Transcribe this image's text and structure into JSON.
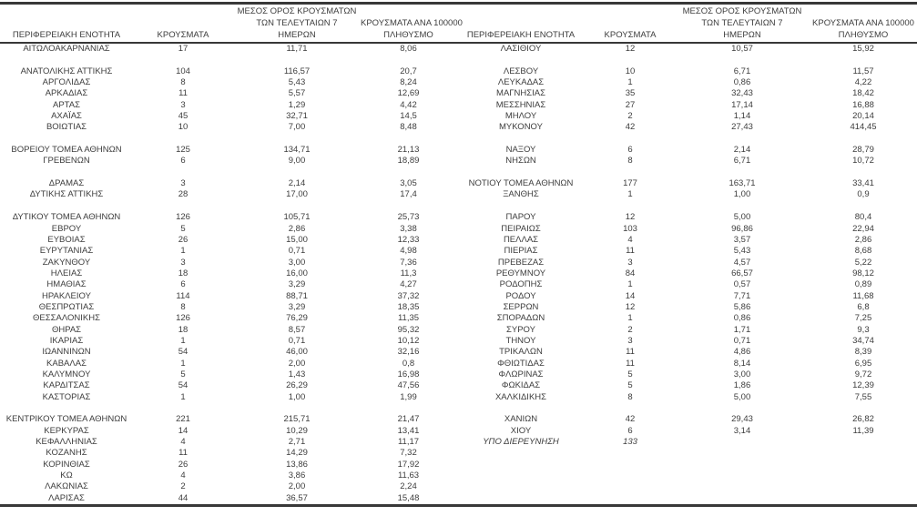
{
  "colors": {
    "text": "#3d3d3d",
    "rule": "#383838",
    "background": "#ffffff"
  },
  "table": {
    "headers": {
      "region": "ΠΕΡΙΦΕΡΕΙΑΚΗ ΕΝΟΤΗΤΑ",
      "cases": "ΚΡΟΥΣΜΑΤΑ",
      "avg7_line1": "ΜΕΣΟΣ ΟΡΟΣ ΚΡΟΥΣΜΑΤΩΝ",
      "avg7_line2": "ΤΩΝ ΤΕΛΕΥΤΑΙΩΝ 7",
      "avg7_line3": "ΗΜΕΡΩΝ",
      "per100k_line1": "ΚΡΟΥΣΜΑΤΑ ΑΝΑ 100000",
      "per100k_line2": "ΠΛΗΘΥΣΜΟ"
    },
    "rows": [
      {
        "left": [
          "ΑΙΤΩΛΟΑΚΑΡΝΑΝΙΑΣ",
          "17",
          "11,71",
          "8,06"
        ],
        "right": [
          "ΛΑΣΙΘΙΟΥ",
          "12",
          "10,57",
          "15,92"
        ]
      },
      {
        "left": [
          "",
          "",
          "",
          ""
        ],
        "right": [
          "",
          "",
          "",
          ""
        ]
      },
      {
        "left": [
          "ΑΝΑΤΟΛΙΚΗΣ ΑΤΤΙΚΗΣ",
          "104",
          "116,57",
          "20,7"
        ],
        "right": [
          "ΛΕΣΒΟΥ",
          "10",
          "6,71",
          "11,57"
        ]
      },
      {
        "left": [
          "ΑΡΓΟΛΙΔΑΣ",
          "8",
          "5,43",
          "8,24"
        ],
        "right": [
          "ΛΕΥΚΑΔΑΣ",
          "1",
          "0,86",
          "4,22"
        ]
      },
      {
        "left": [
          "ΑΡΚΑΔΙΑΣ",
          "11",
          "5,57",
          "12,69"
        ],
        "right": [
          "ΜΑΓΝΗΣΙΑΣ",
          "35",
          "32,43",
          "18,42"
        ]
      },
      {
        "left": [
          "ΑΡΤΑΣ",
          "3",
          "1,29",
          "4,42"
        ],
        "right": [
          "ΜΕΣΣΗΝΙΑΣ",
          "27",
          "17,14",
          "16,88"
        ]
      },
      {
        "left": [
          "ΑΧΑΪΑΣ",
          "45",
          "32,71",
          "14,5"
        ],
        "right": [
          "ΜΗΛΟΥ",
          "2",
          "1,14",
          "20,14"
        ]
      },
      {
        "left": [
          "ΒΟΙΩΤΙΑΣ",
          "10",
          "7,00",
          "8,48"
        ],
        "right": [
          "ΜΥΚΟΝΟΥ",
          "42",
          "27,43",
          "414,45"
        ]
      },
      {
        "left": [
          "",
          "",
          "",
          ""
        ],
        "right": [
          "",
          "",
          "",
          ""
        ]
      },
      {
        "left": [
          "ΒΟΡΕΙΟΥ ΤΟΜΕΑ ΑΘΗΝΩΝ",
          "125",
          "134,71",
          "21,13"
        ],
        "right": [
          "ΝΑΞΟΥ",
          "6",
          "2,14",
          "28,79"
        ]
      },
      {
        "left": [
          "ΓΡΕΒΕΝΩΝ",
          "6",
          "9,00",
          "18,89"
        ],
        "right": [
          "ΝΗΣΩΝ",
          "8",
          "6,71",
          "10,72"
        ]
      },
      {
        "left": [
          "",
          "",
          "",
          ""
        ],
        "right": [
          "",
          "",
          "",
          ""
        ]
      },
      {
        "left": [
          "ΔΡΑΜΑΣ",
          "3",
          "2,14",
          "3,05"
        ],
        "right": [
          "ΝΟΤΙΟΥ ΤΟΜΕΑ ΑΘΗΝΩΝ",
          "177",
          "163,71",
          "33,41"
        ]
      },
      {
        "left": [
          "ΔΥΤΙΚΗΣ ΑΤΤΙΚΗΣ",
          "28",
          "17,00",
          "17,4"
        ],
        "right": [
          "ΞΑΝΘΗΣ",
          "1",
          "1,00",
          "0,9"
        ]
      },
      {
        "left": [
          "",
          "",
          "",
          ""
        ],
        "right": [
          "",
          "",
          "",
          ""
        ]
      },
      {
        "left": [
          "ΔΥΤΙΚΟΥ ΤΟΜΕΑ ΑΘΗΝΩΝ",
          "126",
          "105,71",
          "25,73"
        ],
        "right": [
          "ΠΑΡΟΥ",
          "12",
          "5,00",
          "80,4"
        ]
      },
      {
        "left": [
          "ΕΒΡΟΥ",
          "5",
          "2,86",
          "3,38"
        ],
        "right": [
          "ΠΕΙΡΑΙΩΣ",
          "103",
          "96,86",
          "22,94"
        ]
      },
      {
        "left": [
          "ΕΥΒΟΙΑΣ",
          "26",
          "15,00",
          "12,33"
        ],
        "right": [
          "ΠΕΛΛΑΣ",
          "4",
          "3,57",
          "2,86"
        ]
      },
      {
        "left": [
          "ΕΥΡΥΤΑΝΙΑΣ",
          "1",
          "0,71",
          "4,98"
        ],
        "right": [
          "ΠΙΕΡΙΑΣ",
          "11",
          "5,43",
          "8,68"
        ]
      },
      {
        "left": [
          "ΖΑΚΥΝΘΟΥ",
          "3",
          "3,00",
          "7,36"
        ],
        "right": [
          "ΠΡΕΒΕΖΑΣ",
          "3",
          "4,57",
          "5,22"
        ]
      },
      {
        "left": [
          "ΗΛΕΙΑΣ",
          "18",
          "16,00",
          "11,3"
        ],
        "right": [
          "ΡΕΘΥΜΝΟΥ",
          "84",
          "66,57",
          "98,12"
        ]
      },
      {
        "left": [
          "ΗΜΑΘΙΑΣ",
          "6",
          "3,29",
          "4,27"
        ],
        "right": [
          "ΡΟΔΟΠΗΣ",
          "1",
          "0,57",
          "0,89"
        ]
      },
      {
        "left": [
          "ΗΡΑΚΛΕΙΟΥ",
          "114",
          "88,71",
          "37,32"
        ],
        "right": [
          "ΡΟΔΟΥ",
          "14",
          "7,71",
          "11,68"
        ]
      },
      {
        "left": [
          "ΘΕΣΠΡΩΤΙΑΣ",
          "8",
          "3,29",
          "18,35"
        ],
        "right": [
          "ΣΕΡΡΩΝ",
          "12",
          "5,86",
          "6,8"
        ]
      },
      {
        "left": [
          "ΘΕΣΣΑΛΟΝΙΚΗΣ",
          "126",
          "76,29",
          "11,35"
        ],
        "right": [
          "ΣΠΟΡΑΔΩΝ",
          "1",
          "0,86",
          "7,25"
        ]
      },
      {
        "left": [
          "ΘΗΡΑΣ",
          "18",
          "8,57",
          "95,32"
        ],
        "right": [
          "ΣΥΡΟΥ",
          "2",
          "1,71",
          "9,3"
        ]
      },
      {
        "left": [
          "ΙΚΑΡΙΑΣ",
          "1",
          "0,71",
          "10,12"
        ],
        "right": [
          "ΤΗΝΟΥ",
          "3",
          "0,71",
          "34,74"
        ]
      },
      {
        "left": [
          "ΙΩΑΝΝΙΝΩΝ",
          "54",
          "46,00",
          "32,16"
        ],
        "right": [
          "ΤΡΙΚΑΛΩΝ",
          "11",
          "4,86",
          "8,39"
        ]
      },
      {
        "left": [
          "ΚΑΒΑΛΑΣ",
          "1",
          "2,00",
          "0,8"
        ],
        "right": [
          "ΦΘΙΩΤΙΔΑΣ",
          "11",
          "8,14",
          "6,95"
        ]
      },
      {
        "left": [
          "ΚΑΛΥΜΝΟΥ",
          "5",
          "1,43",
          "16,98"
        ],
        "right": [
          "ΦΛΩΡΙΝΑΣ",
          "5",
          "3,00",
          "9,72"
        ]
      },
      {
        "left": [
          "ΚΑΡΔΙΤΣΑΣ",
          "54",
          "26,29",
          "47,56"
        ],
        "right": [
          "ΦΩΚΙΔΑΣ",
          "5",
          "1,86",
          "12,39"
        ]
      },
      {
        "left": [
          "ΚΑΣΤΟΡΙΑΣ",
          "1",
          "1,00",
          "1,99"
        ],
        "right": [
          "ΧΑΛΚΙΔΙΚΗΣ",
          "8",
          "5,00",
          "7,55"
        ]
      },
      {
        "left": [
          "",
          "",
          "",
          ""
        ],
        "right": [
          "",
          "",
          "",
          ""
        ]
      },
      {
        "left": [
          "ΚΕΝΤΡΙΚΟΥ ΤΟΜΕΑ ΑΘΗΝΩΝ",
          "221",
          "215,71",
          "21,47"
        ],
        "right": [
          "ΧΑΝΙΩΝ",
          "42",
          "29,43",
          "26,82"
        ]
      },
      {
        "left": [
          "ΚΕΡΚΥΡΑΣ",
          "14",
          "10,29",
          "13,41"
        ],
        "right": [
          "ΧΙΟΥ",
          "6",
          "3,14",
          "11,39"
        ]
      },
      {
        "left": [
          "ΚΕΦΑΛΛΗΝΙΑΣ",
          "4",
          "2,71",
          "11,17"
        ],
        "right": [
          "ΥΠΟ ΔΙΕΡΕΥΝΗΣΗ",
          "133",
          "",
          ""
        ],
        "right_italic": true
      },
      {
        "left": [
          "ΚΟΖΑΝΗΣ",
          "11",
          "14,29",
          "7,32"
        ],
        "right": [
          "",
          "",
          "",
          ""
        ]
      },
      {
        "left": [
          "ΚΟΡΙΝΘΙΑΣ",
          "26",
          "13,86",
          "17,92"
        ],
        "right": [
          "",
          "",
          "",
          ""
        ]
      },
      {
        "left": [
          "ΚΩ",
          "4",
          "3,86",
          "11,63"
        ],
        "right": [
          "",
          "",
          "",
          ""
        ]
      },
      {
        "left": [
          "ΛΑΚΩΝΙΑΣ",
          "2",
          "2,00",
          "2,24"
        ],
        "right": [
          "",
          "",
          "",
          ""
        ]
      },
      {
        "left": [
          "ΛΑΡΙΣΑΣ",
          "44",
          "36,57",
          "15,48"
        ],
        "right": [
          "",
          "",
          "",
          ""
        ]
      }
    ]
  }
}
